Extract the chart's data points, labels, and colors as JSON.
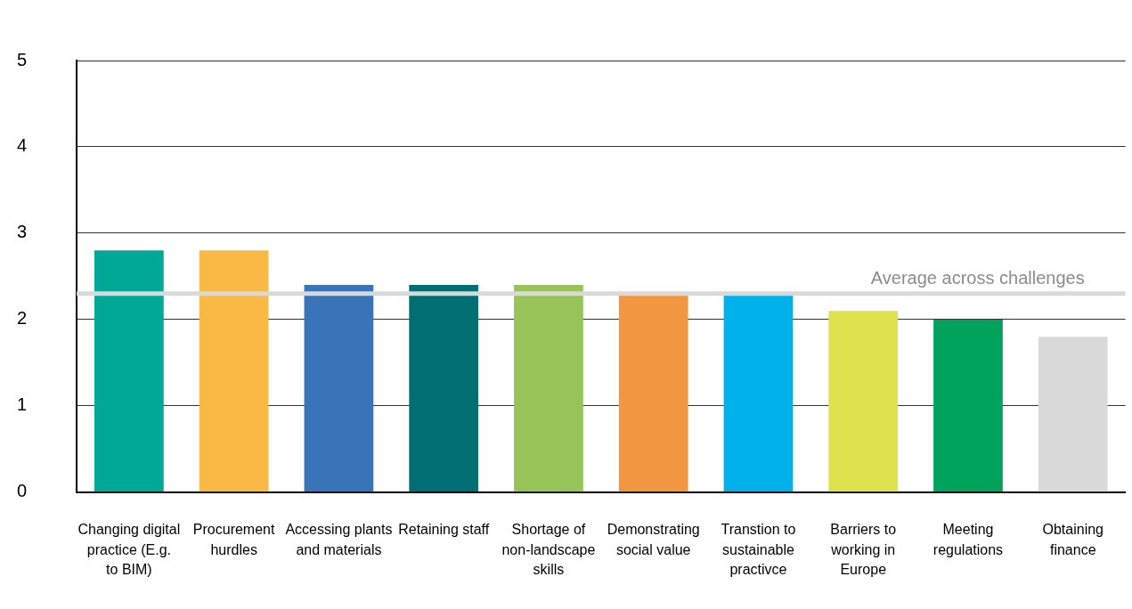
{
  "chart_data": {
    "type": "bar",
    "categories": [
      "Changing digital practice (E.g. to BIM)",
      "Procurement hurdles",
      "Accessing plants and materials",
      "Retaining staff",
      "Shortage of non-landscape skills",
      "Demonstrating social value",
      "Transtion to sustainable practivce",
      "Barriers to working in Europe",
      "Meeting regulations",
      "Obtaining finance"
    ],
    "values": [
      2.8,
      2.8,
      2.4,
      2.4,
      2.4,
      2.3,
      2.3,
      2.1,
      2.0,
      1.8
    ],
    "colors": [
      "#00a896",
      "#f9b944",
      "#3a74b8",
      "#006f73",
      "#96c459",
      "#f39642",
      "#00b1eb",
      "#dee24c",
      "#00a35c",
      "#d9d9d9"
    ],
    "ylim": [
      0,
      5
    ],
    "yticks": [
      0,
      1,
      2,
      3,
      4,
      5
    ],
    "grid": "y",
    "legend": false,
    "ref_lines": [
      {
        "axis": "y",
        "value": 2.3,
        "label": "Average across challenges",
        "color": "#d9d9d9"
      }
    ]
  }
}
